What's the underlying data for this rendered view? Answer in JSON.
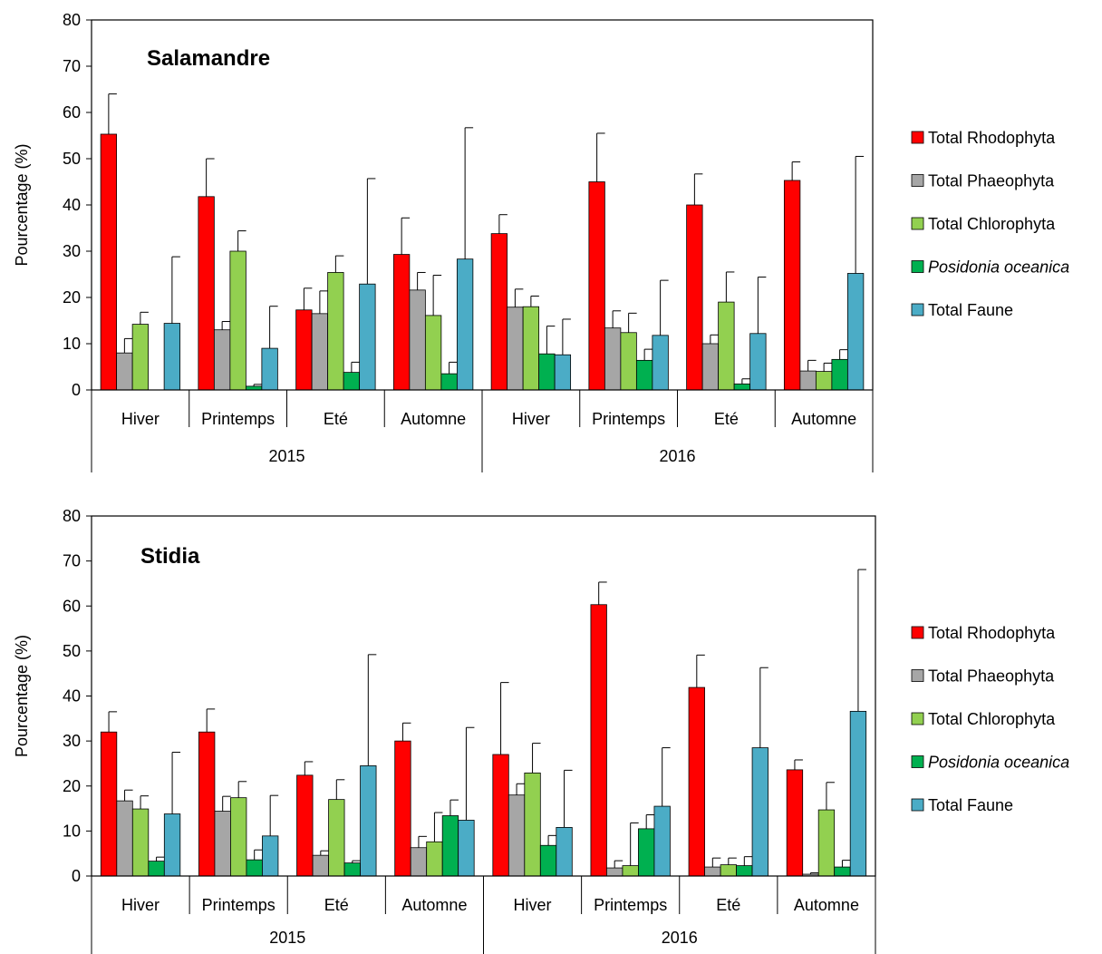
{
  "chart_data": [
    {
      "type": "bar",
      "title": "Salamandre",
      "ylabel": "Pourcentage (%)",
      "ylim": [
        0,
        80
      ],
      "yticks": [
        "0",
        "10",
        "20",
        "30",
        "40",
        "50",
        "60",
        "70",
        "80"
      ],
      "categories": [
        "Hiver",
        "Printemps",
        "Eté",
        "Automne",
        "Hiver",
        "Printemps",
        "Eté",
        "Automne"
      ],
      "groups": [
        {
          "label": "2015",
          "span": [
            0,
            3
          ]
        },
        {
          "label": "2016",
          "span": [
            4,
            7
          ]
        }
      ],
      "series": [
        {
          "name": "Total Rhodophyta",
          "italic": false,
          "color": "#FF0000",
          "values": [
            55.3,
            41.8,
            17.3,
            29.3,
            33.8,
            45.0,
            40.0,
            45.3
          ],
          "errors": [
            8.7,
            8.2,
            4.7,
            7.9,
            4.1,
            10.5,
            6.7,
            4.0
          ]
        },
        {
          "name": "Total Phaeophyta",
          "italic": false,
          "color": "#A6A6A6",
          "values": [
            8.0,
            13.0,
            16.5,
            21.6,
            17.9,
            13.4,
            10.0,
            4.1
          ],
          "errors": [
            3.1,
            1.8,
            4.9,
            3.8,
            3.9,
            3.7,
            1.9,
            2.3
          ]
        },
        {
          "name": "Total Chlorophyta",
          "italic": false,
          "color": "#92D050",
          "values": [
            14.2,
            30.0,
            25.4,
            16.1,
            18.0,
            12.4,
            19.0,
            4.0
          ],
          "errors": [
            2.6,
            4.4,
            3.6,
            8.7,
            2.3,
            4.2,
            6.5,
            1.8
          ]
        },
        {
          "name": "Posidonia oceanica",
          "italic": true,
          "color": "#00B050",
          "values": [
            0,
            0.8,
            3.8,
            3.5,
            7.8,
            6.4,
            1.3,
            6.6
          ],
          "errors": [
            0,
            0.4,
            2.2,
            2.5,
            6.0,
            2.4,
            1.1,
            2.1
          ]
        },
        {
          "name": "Total Faune",
          "italic": false,
          "color": "#4BACC6",
          "values": [
            14.4,
            9.0,
            22.9,
            28.3,
            7.6,
            11.8,
            12.2,
            25.2
          ],
          "errors": [
            14.4,
            9.1,
            22.8,
            28.4,
            7.7,
            11.9,
            12.2,
            25.3
          ]
        }
      ]
    },
    {
      "type": "bar",
      "title": "Stidia",
      "ylabel": "Pourcentage (%)",
      "ylim": [
        0,
        80
      ],
      "yticks": [
        "0",
        "10",
        "20",
        "30",
        "40",
        "50",
        "60",
        "70",
        "80"
      ],
      "categories": [
        "Hiver",
        "Printemps",
        "Eté",
        "Automne",
        "Hiver",
        "Printemps",
        "Eté",
        "Automne"
      ],
      "groups": [
        {
          "label": "2015",
          "span": [
            0,
            3
          ]
        },
        {
          "label": "2016",
          "span": [
            4,
            7
          ]
        }
      ],
      "series": [
        {
          "name": "Total Rhodophyta",
          "italic": false,
          "color": "#FF0000",
          "values": [
            32.0,
            32.0,
            22.4,
            30.0,
            27.0,
            60.3,
            41.9,
            23.6
          ],
          "errors": [
            4.5,
            5.1,
            3.0,
            4.0,
            16.0,
            5.0,
            7.2,
            2.2
          ]
        },
        {
          "name": "Total Phaeophyta",
          "italic": false,
          "color": "#A6A6A6",
          "values": [
            16.7,
            14.4,
            4.6,
            6.3,
            18.0,
            1.8,
            2.0,
            0.4
          ],
          "errors": [
            2.4,
            3.3,
            1.0,
            2.5,
            2.5,
            1.6,
            2.0,
            0.3
          ]
        },
        {
          "name": "Total Chlorophyta",
          "italic": false,
          "color": "#92D050",
          "values": [
            14.9,
            17.4,
            17.0,
            7.6,
            22.9,
            2.3,
            2.5,
            14.7
          ],
          "errors": [
            2.9,
            3.6,
            4.4,
            6.5,
            6.6,
            9.5,
            1.5,
            6.1
          ]
        },
        {
          "name": "Posidonia oceanica",
          "italic": true,
          "color": "#00B050",
          "values": [
            3.3,
            3.6,
            2.9,
            13.4,
            6.8,
            10.5,
            2.3,
            2.0
          ],
          "errors": [
            0.9,
            2.2,
            0.5,
            3.5,
            2.2,
            3.1,
            2.0,
            1.5
          ]
        },
        {
          "name": "Total Faune",
          "italic": false,
          "color": "#4BACC6",
          "values": [
            13.8,
            8.9,
            24.5,
            12.4,
            10.8,
            15.5,
            28.5,
            36.6
          ],
          "errors": [
            13.7,
            9.0,
            24.7,
            20.6,
            12.7,
            13.0,
            17.8,
            31.5
          ]
        }
      ]
    }
  ]
}
